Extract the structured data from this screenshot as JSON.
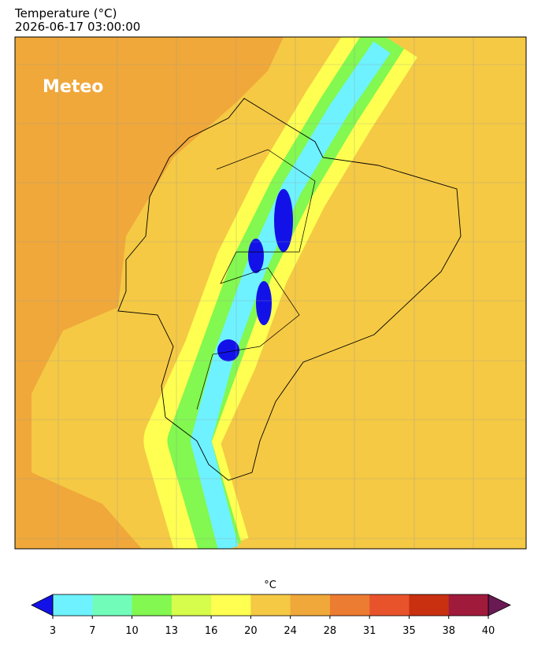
{
  "header": {
    "title": "Temperature (°C)",
    "timestamp": "2026-06-17 03:00:00"
  },
  "logo": "Meteo",
  "colorbar": {
    "label": "°C",
    "ticks": [
      3,
      7,
      10,
      13,
      16,
      20,
      24,
      28,
      31,
      35,
      38,
      40
    ],
    "colors": [
      "#6ef2ff",
      "#72fcba",
      "#82f850",
      "#d6fc4c",
      "#ffff52",
      "#f5c944",
      "#f0a83a",
      "#ec7c32",
      "#e8532c",
      "#c83010",
      "#a01a3c"
    ],
    "under_color": "#1212e8",
    "over_color": "#6a1a52"
  }
}
